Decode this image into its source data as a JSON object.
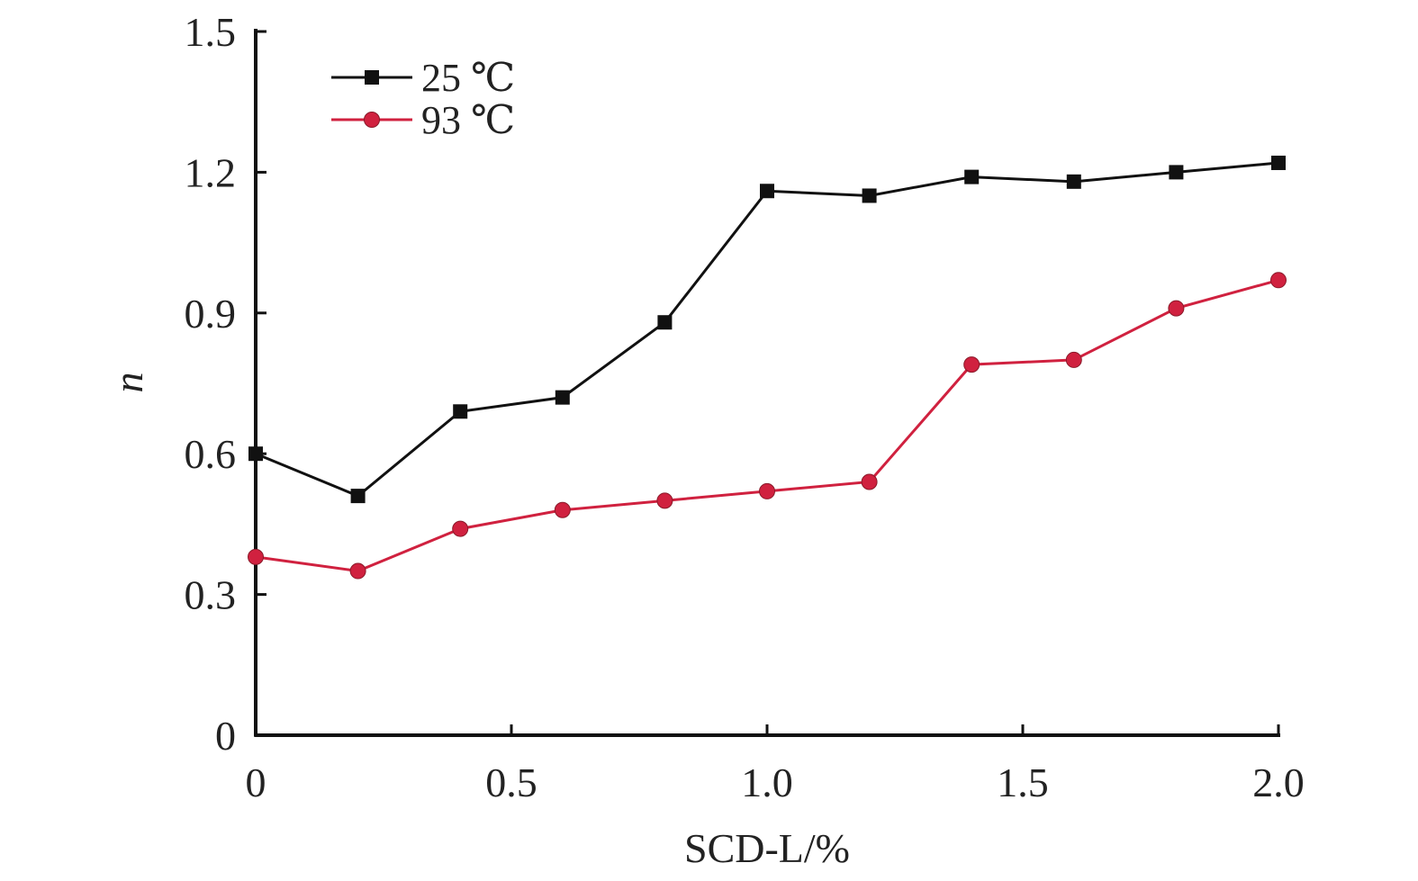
{
  "chart_data": {
    "type": "line",
    "xlabel": "SCD-L/%",
    "ylabel": "n",
    "xlim": [
      0,
      2.0
    ],
    "ylim": [
      0,
      1.5
    ],
    "x_ticks": [
      0,
      0.5,
      1.0,
      1.5,
      2.0
    ],
    "x_tick_labels": [
      "0",
      "0.5",
      "1.0",
      "1.5",
      "2.0"
    ],
    "y_ticks": [
      0,
      0.3,
      0.6,
      0.9,
      1.2,
      1.5
    ],
    "y_tick_labels": [
      "0",
      "0.3",
      "0.6",
      "0.9",
      "1.2",
      "1.5"
    ],
    "grid": false,
    "legend_position": "top-left",
    "x": [
      0,
      0.2,
      0.4,
      0.6,
      0.8,
      1.0,
      1.2,
      1.4,
      1.6,
      1.8,
      2.0
    ],
    "series": [
      {
        "name": "25 ℃",
        "color": "#111111",
        "marker": "square",
        "values": [
          0.6,
          0.51,
          0.69,
          0.72,
          0.88,
          1.16,
          1.15,
          1.19,
          1.18,
          1.2,
          1.22
        ]
      },
      {
        "name": "93 ℃",
        "color": "#d0213f",
        "marker": "circle",
        "values": [
          0.38,
          0.35,
          0.44,
          0.48,
          0.5,
          0.52,
          0.54,
          0.79,
          0.8,
          0.91,
          0.97
        ]
      }
    ]
  }
}
